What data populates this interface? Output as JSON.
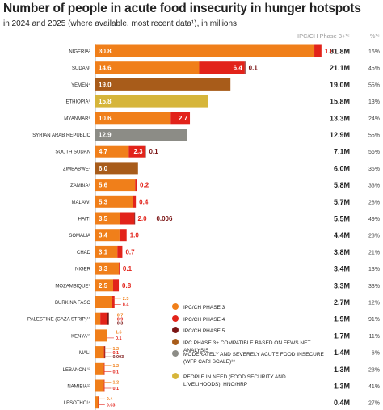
{
  "title": "Number of people in acute food insecurity in hunger hotspots",
  "subtitle": "in 2024 and 2025 (where available, most recent data¹), in millions",
  "chart_data": {
    "type": "bar",
    "orientation": "horizontal",
    "stacked": true,
    "xlim": [
      0,
      35
    ],
    "xticks": [
      "0",
      "5",
      "10",
      "15",
      "20",
      "25",
      "30",
      "35"
    ],
    "total_column_header": "IPC/CH Phase 3+¹⁵",
    "percent_column_header": "%¹⁶",
    "categories": [
      "NIGERIA²",
      "SUDAN³",
      "YEMEN⁴",
      "ETHIOPIA⁵",
      "MYANMAR⁶",
      "SYRIAN ARAB REPUBLIC",
      "SOUTH SUDAN",
      "ZIMBABWE⁷",
      "ZAMBIA⁸",
      "MALAWI",
      "HAITI",
      "SOMALIA",
      "CHAD",
      "NIGER",
      "MOZAMBIQUE⁹",
      "BURKINA FASO",
      "PALESTINE (GAZA STRIP)¹⁰",
      "KENYA¹¹",
      "MALI",
      "LEBANON ¹²",
      "NAMIBIA¹³",
      "LESOTHO¹⁴"
    ],
    "legend": [
      {
        "key": "phase3",
        "label": "IPC/CH PHASE 3",
        "color": "#f07f1a"
      },
      {
        "key": "phase4",
        "label": "IPC/CH PHASE 4",
        "color": "#e2231a"
      },
      {
        "key": "phase5",
        "label": "IPC/CH PHASE 5",
        "color": "#7a1414"
      },
      {
        "key": "fews",
        "label": "IPC PHASE 3+ COMPATIBLE BASED ON FEWS NET ANALYSIS",
        "color": "#a85c1a"
      },
      {
        "key": "cari",
        "label": "MODERATELY AND SEVERELY ACUTE FOOD INSECURE (WFP CARI SCALE)¹⁸",
        "color": "#8c8c86"
      },
      {
        "key": "hno",
        "label": "PEOPLE IN NEED (FOOD SECURITY AND LIVELIHOODS), HNO/HRP",
        "color": "#d6b53a"
      }
    ],
    "rows": [
      {
        "segments": [
          {
            "type": "phase3",
            "value": 30.8,
            "label": "30.8"
          },
          {
            "type": "phase4",
            "value": 1.0,
            "label": "1.0"
          }
        ],
        "total": "31.8M",
        "pct": "16%"
      },
      {
        "segments": [
          {
            "type": "phase3",
            "value": 14.6,
            "label": "14.6"
          },
          {
            "type": "phase4",
            "value": 6.4,
            "label": "6.4"
          },
          {
            "type": "phase5",
            "value": 0.1,
            "label": "0.1"
          }
        ],
        "total": "21.1M",
        "pct": "45%"
      },
      {
        "segments": [
          {
            "type": "fews",
            "value": 19.0,
            "label": "19.0"
          }
        ],
        "total": "19.0M",
        "pct": "55%"
      },
      {
        "segments": [
          {
            "type": "hno",
            "value": 15.8,
            "label": "15.8"
          }
        ],
        "total": "15.8M",
        "pct": "13%"
      },
      {
        "segments": [
          {
            "type": "phase3",
            "value": 10.6,
            "label": "10.6"
          },
          {
            "type": "phase4",
            "value": 2.7,
            "label": "2.7"
          }
        ],
        "total": "13.3M",
        "pct": "24%"
      },
      {
        "segments": [
          {
            "type": "cari",
            "value": 12.9,
            "label": "12.9"
          }
        ],
        "total": "12.9M",
        "pct": "55%"
      },
      {
        "segments": [
          {
            "type": "phase3",
            "value": 4.7,
            "label": "4.7"
          },
          {
            "type": "phase4",
            "value": 2.3,
            "label": "2.3"
          },
          {
            "type": "phase5",
            "value": 0.1,
            "label": "0.1"
          }
        ],
        "total": "7.1M",
        "pct": "56%"
      },
      {
        "segments": [
          {
            "type": "fews",
            "value": 6.0,
            "label": "6.0"
          }
        ],
        "total": "6.0M",
        "pct": "35%"
      },
      {
        "segments": [
          {
            "type": "phase3",
            "value": 5.6,
            "label": "5.6"
          },
          {
            "type": "phase4",
            "value": 0.2,
            "label": "0.2"
          }
        ],
        "total": "5.8M",
        "pct": "33%"
      },
      {
        "segments": [
          {
            "type": "phase3",
            "value": 5.3,
            "label": "5.3"
          },
          {
            "type": "phase4",
            "value": 0.4,
            "label": "0.4"
          }
        ],
        "total": "5.7M",
        "pct": "28%"
      },
      {
        "segments": [
          {
            "type": "phase3",
            "value": 3.5,
            "label": "3.5"
          },
          {
            "type": "phase4",
            "value": 2.0,
            "label": "2.0"
          },
          {
            "type": "phase5",
            "value": 0.006,
            "label": "0.006"
          }
        ],
        "total": "5.5M",
        "pct": "49%"
      },
      {
        "segments": [
          {
            "type": "phase3",
            "value": 3.4,
            "label": "3.4"
          },
          {
            "type": "phase4",
            "value": 1.0,
            "label": "1.0"
          }
        ],
        "total": "4.4M",
        "pct": "23%"
      },
      {
        "segments": [
          {
            "type": "phase3",
            "value": 3.1,
            "label": "3.1"
          },
          {
            "type": "phase4",
            "value": 0.7,
            "label": "0.7"
          }
        ],
        "total": "3.8M",
        "pct": "21%"
      },
      {
        "segments": [
          {
            "type": "phase3",
            "value": 3.3,
            "label": "3.3"
          },
          {
            "type": "phase4",
            "value": 0.1,
            "label": "0.1"
          }
        ],
        "total": "3.4M",
        "pct": "13%"
      },
      {
        "segments": [
          {
            "type": "phase3",
            "value": 2.5,
            "label": "2.5"
          },
          {
            "type": "phase4",
            "value": 0.8,
            "label": "0.8"
          }
        ],
        "total": "3.3M",
        "pct": "33%"
      },
      {
        "segments": [
          {
            "type": "phase3",
            "value": 2.3,
            "label": "2.3"
          },
          {
            "type": "phase4",
            "value": 0.4,
            "label": "0.4"
          }
        ],
        "total": "2.7M",
        "pct": "12%"
      },
      {
        "segments": [
          {
            "type": "phase3",
            "value": 0.7,
            "label": "0.7"
          },
          {
            "type": "phase4",
            "value": 0.9,
            "label": "0.9"
          },
          {
            "type": "phase5",
            "value": 0.3,
            "label": "0.3"
          }
        ],
        "total": "1.9M",
        "pct": "91%"
      },
      {
        "segments": [
          {
            "type": "phase3",
            "value": 1.6,
            "label": "1.6"
          },
          {
            "type": "phase4",
            "value": 0.1,
            "label": "0.1"
          }
        ],
        "total": "1.7M",
        "pct": "11%"
      },
      {
        "segments": [
          {
            "type": "phase3",
            "value": 1.2,
            "label": "1.2"
          },
          {
            "type": "phase4",
            "value": 0.1,
            "label": "0.1"
          },
          {
            "type": "phase5",
            "value": 0.003,
            "label": "0.003"
          }
        ],
        "total": "1.4M",
        "pct": "6%"
      },
      {
        "segments": [
          {
            "type": "phase3",
            "value": 1.2,
            "label": "1.2"
          },
          {
            "type": "phase4",
            "value": 0.1,
            "label": "0.1"
          }
        ],
        "total": "1.3M",
        "pct": "23%"
      },
      {
        "segments": [
          {
            "type": "phase3",
            "value": 1.2,
            "label": "1.2"
          },
          {
            "type": "phase4",
            "value": 0.1,
            "label": "0.1"
          }
        ],
        "total": "1.3M",
        "pct": "41%"
      },
      {
        "segments": [
          {
            "type": "phase3",
            "value": 0.4,
            "label": "0.4"
          },
          {
            "type": "phase4",
            "value": 0.03,
            "label": "0.03"
          }
        ],
        "total": "0.4M",
        "pct": "27%"
      }
    ]
  }
}
